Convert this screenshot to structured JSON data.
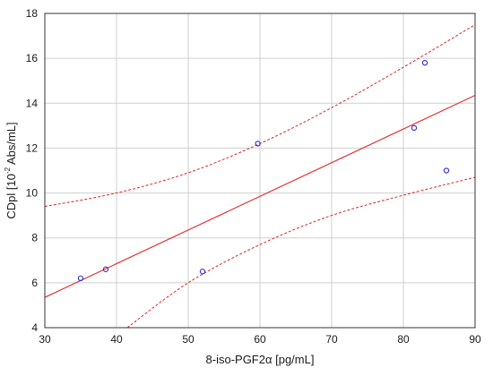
{
  "chart_data": {
    "type": "scatter",
    "xlabel": "8-iso-PGF2α [pg/mL]",
    "ylabel": {
      "prefix": "CDpl [10",
      "sup": "-2",
      "suffix": " Abs/mL]"
    },
    "xlim": [
      30,
      90
    ],
    "ylim": [
      4,
      18
    ],
    "xticks": [
      "30",
      "40",
      "50",
      "60",
      "70",
      "80",
      "90"
    ],
    "yticks": [
      "4",
      "6",
      "8",
      "10",
      "12",
      "14",
      "16",
      "18"
    ],
    "grid": true,
    "points": [
      {
        "x": 35.0,
        "y": 6.2
      },
      {
        "x": 38.5,
        "y": 6.6
      },
      {
        "x": 52.0,
        "y": 6.5
      },
      {
        "x": 59.7,
        "y": 12.2
      },
      {
        "x": 81.5,
        "y": 12.9
      },
      {
        "x": 83.0,
        "y": 15.8
      },
      {
        "x": 86.0,
        "y": 11.0
      }
    ],
    "regression_line": {
      "x": [
        30,
        90
      ],
      "y": [
        5.35,
        14.35
      ]
    },
    "confidence_upper": {
      "x": [
        30,
        40,
        50,
        60,
        70,
        80,
        90
      ],
      "y": [
        9.4,
        10.0,
        10.9,
        12.2,
        13.8,
        15.6,
        17.5
      ]
    },
    "confidence_lower": {
      "x": [
        41.5,
        50,
        60,
        70,
        80,
        90
      ],
      "y": [
        4.0,
        6.0,
        7.7,
        9.0,
        9.9,
        10.7
      ]
    },
    "colors": {
      "points": "#2a2ad8",
      "regression": "#e0353a",
      "confidence": "#d62a2a",
      "grid": "#cfcfcf",
      "frame": "#333333"
    }
  }
}
